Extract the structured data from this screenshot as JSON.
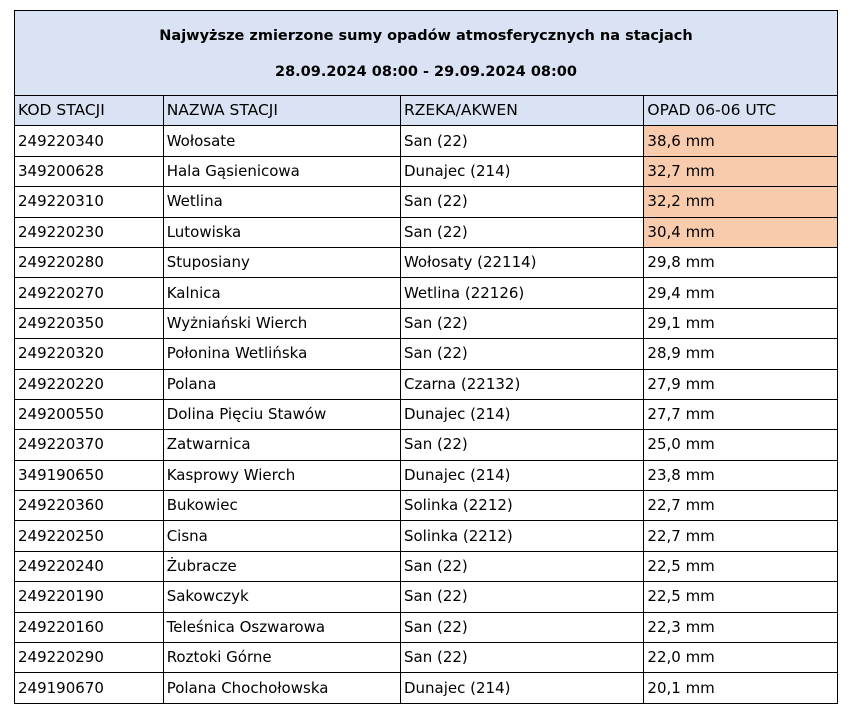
{
  "title": {
    "line1": "Najwyższe zmierzone sumy opadów atmosferycznych na stacjach",
    "line2": "28.09.2024 08:00 - 29.09.2024 08:00"
  },
  "colors": {
    "header_bg": "#dae3f3",
    "highlight_bg": "#f8cbad"
  },
  "columns": [
    "KOD STACJI",
    "NAZWA STACJI",
    "RZEKA/AKWEN",
    "OPAD 06-06 UTC"
  ],
  "rows": [
    {
      "code": "249220340",
      "name": "Wołosate",
      "river": "San (22)",
      "rain": "38,6 mm",
      "highlight": true
    },
    {
      "code": "349200628",
      "name": "Hala Gąsienicowa",
      "river": "Dunajec (214)",
      "rain": "32,7 mm",
      "highlight": true
    },
    {
      "code": "249220310",
      "name": "Wetlina",
      "river": "San (22)",
      "rain": "32,2 mm",
      "highlight": true
    },
    {
      "code": "249220230",
      "name": "Lutowiska",
      "river": "San (22)",
      "rain": "30,4 mm",
      "highlight": true
    },
    {
      "code": "249220280",
      "name": "Stuposiany",
      "river": "Wołosaty (22114)",
      "rain": "29,8 mm",
      "highlight": false
    },
    {
      "code": "249220270",
      "name": "Kalnica",
      "river": "Wetlina (22126)",
      "rain": "29,4 mm",
      "highlight": false
    },
    {
      "code": "249220350",
      "name": "Wyżniański Wierch",
      "river": "San (22)",
      "rain": "29,1 mm",
      "highlight": false
    },
    {
      "code": "249220320",
      "name": "Połonina Wetlińska",
      "river": "San (22)",
      "rain": "28,9 mm",
      "highlight": false
    },
    {
      "code": "249220220",
      "name": "Polana",
      "river": "Czarna (22132)",
      "rain": "27,9 mm",
      "highlight": false
    },
    {
      "code": "249200550",
      "name": "Dolina Pięciu Stawów",
      "river": "Dunajec (214)",
      "rain": "27,7 mm",
      "highlight": false
    },
    {
      "code": "249220370",
      "name": "Zatwarnica",
      "river": "San (22)",
      "rain": "25,0 mm",
      "highlight": false
    },
    {
      "code": "349190650",
      "name": "Kasprowy Wierch",
      "river": "Dunajec (214)",
      "rain": "23,8 mm",
      "highlight": false
    },
    {
      "code": "249220360",
      "name": "Bukowiec",
      "river": "Solinka (2212)",
      "rain": "22,7 mm",
      "highlight": false
    },
    {
      "code": "249220250",
      "name": "Cisna",
      "river": "Solinka (2212)",
      "rain": "22,7 mm",
      "highlight": false
    },
    {
      "code": "249220240",
      "name": "Żubracze",
      "river": "San (22)",
      "rain": "22,5 mm",
      "highlight": false
    },
    {
      "code": "249220190",
      "name": "Sakowczyk",
      "river": "San (22)",
      "rain": "22,5 mm",
      "highlight": false
    },
    {
      "code": "249220160",
      "name": "Teleśnica Oszwarowa",
      "river": "San (22)",
      "rain": "22,3 mm",
      "highlight": false
    },
    {
      "code": "249220290",
      "name": "Roztoki Górne",
      "river": "San (22)",
      "rain": "22,0 mm",
      "highlight": false
    },
    {
      "code": "249190670",
      "name": "Polana Chochołowska",
      "river": "Dunajec (214)",
      "rain": "20,1 mm",
      "highlight": false
    }
  ]
}
